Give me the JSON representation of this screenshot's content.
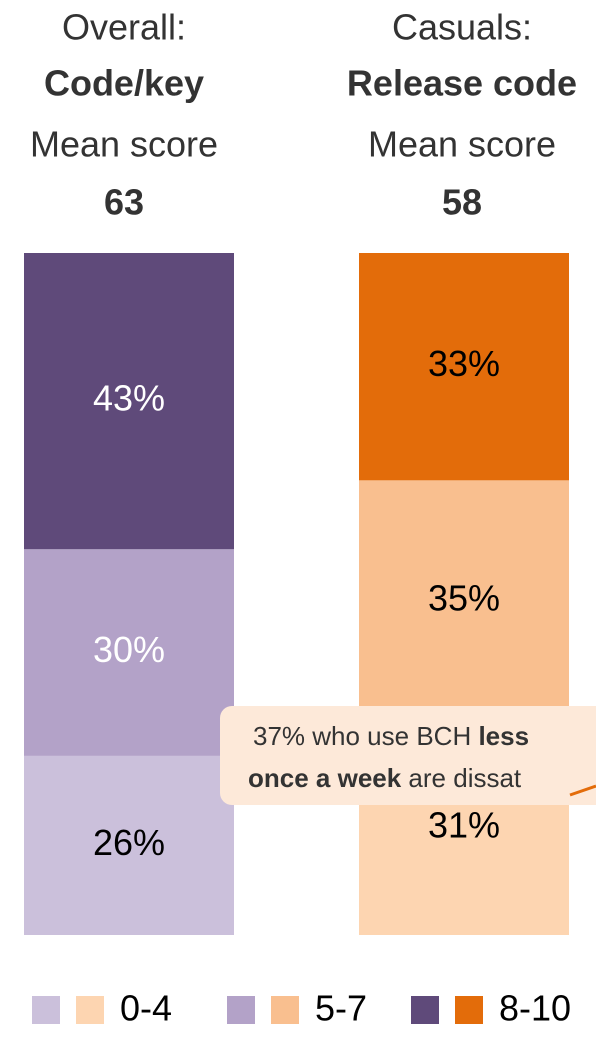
{
  "chart_data": {
    "type": "stacked_bar",
    "columns": [
      {
        "line1": "Overall:",
        "line2": "Code/key",
        "line3": "Mean score",
        "mean": 63
      },
      {
        "line1": "Casuals:",
        "line2": "Release code",
        "line3": "Mean score",
        "mean": 58
      }
    ],
    "series": [
      {
        "name": "0-4",
        "colors": [
          "#cbc0db",
          "#fdd5b1"
        ],
        "label_colors": [
          "#000000",
          "#000000"
        ],
        "values": [
          26,
          31
        ],
        "value_labels": [
          "26%",
          "31%"
        ]
      },
      {
        "name": "5-7",
        "colors": [
          "#b3a2c8",
          "#f9bf8f"
        ],
        "label_colors": [
          "#ffffff",
          "#000000"
        ],
        "values": [
          30,
          35
        ],
        "value_labels": [
          "30%",
          "35%"
        ]
      },
      {
        "name": "8-10",
        "colors": [
          "#5f4a7a",
          "#e36c0a"
        ],
        "label_colors": [
          "#ffffff",
          "#000000"
        ],
        "values": [
          43,
          33
        ],
        "value_labels": [
          "43%",
          "33%"
        ]
      }
    ],
    "callout": {
      "lines": [
        [
          {
            "text": "37% who use BCH ",
            "bold": false
          },
          {
            "text": "less",
            "bold": true
          }
        ],
        [
          {
            "text": "once a week",
            "bold": true
          },
          {
            "text": " are dissat",
            "bold": false
          }
        ]
      ]
    }
  }
}
